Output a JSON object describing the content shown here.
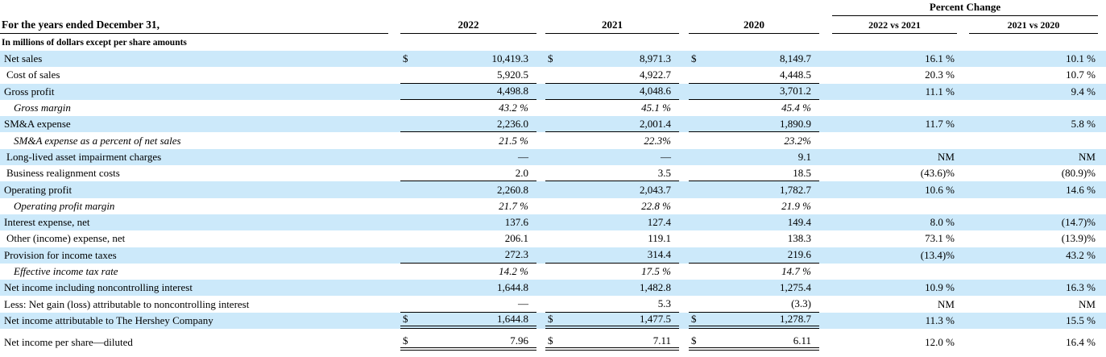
{
  "meta": {
    "currency_symbol": "$"
  },
  "colors": {
    "row_highlight": "#cce9fa",
    "text": "#000000"
  },
  "header": {
    "percent_change_label": "Percent Change",
    "row_label_header": "For the years ended December 31,",
    "unit_note": "In millions of dollars except per share amounts",
    "year_columns": [
      "2022",
      "2021",
      "2020"
    ],
    "percent_columns": [
      "2022 vs 2021",
      "2021 vs 2020"
    ]
  },
  "rows": [
    {
      "label": "Net sales",
      "shaded": true,
      "indent": 0,
      "italic": false,
      "dollar": true,
      "underline": "none",
      "y2022": "10,419.3",
      "y2021": "8,971.3",
      "y2020": "8,149.7",
      "pc1": "16.1 %",
      "pc2": "10.1 %"
    },
    {
      "label": "Cost of sales",
      "shaded": false,
      "indent": 1,
      "italic": false,
      "dollar": false,
      "underline": "single",
      "y2022": "5,920.5",
      "y2021": "4,922.7",
      "y2020": "4,448.5",
      "pc1": "20.3 %",
      "pc2": "10.7 %"
    },
    {
      "label": "Gross profit",
      "shaded": true,
      "indent": 0,
      "italic": false,
      "dollar": false,
      "underline": "single",
      "y2022": "4,498.8",
      "y2021": "4,048.6",
      "y2020": "3,701.2",
      "pc1": "11.1 %",
      "pc2": "9.4 %"
    },
    {
      "label": "Gross margin",
      "shaded": false,
      "indent": 2,
      "italic": true,
      "dollar": false,
      "underline": "none",
      "y2022": "43.2 %",
      "y2021": "45.1 %",
      "y2020": "45.4 %",
      "pc1": "",
      "pc2": ""
    },
    {
      "label": "SM&A expense",
      "shaded": true,
      "indent": 0,
      "italic": false,
      "dollar": false,
      "underline": "single",
      "y2022": "2,236.0",
      "y2021": "2,001.4",
      "y2020": "1,890.9",
      "pc1": "11.7 %",
      "pc2": "5.8 %"
    },
    {
      "label": "SM&A expense as a percent of net sales",
      "shaded": false,
      "indent": 2,
      "italic": true,
      "dollar": false,
      "underline": "none",
      "y2022": "21.5 %",
      "y2021": "22.3%",
      "y2020": "23.2%",
      "pc1": "",
      "pc2": ""
    },
    {
      "label": "Long-lived asset impairment charges",
      "shaded": true,
      "indent": 1,
      "italic": false,
      "dollar": false,
      "underline": "none",
      "y2022": "—",
      "y2021": "—",
      "y2020": "9.1",
      "pc1": "NM",
      "pc2": "NM"
    },
    {
      "label": "Business realignment costs",
      "shaded": false,
      "indent": 1,
      "italic": false,
      "dollar": false,
      "underline": "single",
      "y2022": "2.0",
      "y2021": "3.5",
      "y2020": "18.5",
      "pc1": "(43.6)%",
      "pc2": "(80.9)%"
    },
    {
      "label": "Operating profit",
      "shaded": true,
      "indent": 0,
      "italic": false,
      "dollar": false,
      "underline": "none",
      "y2022": "2,260.8",
      "y2021": "2,043.7",
      "y2020": "1,782.7",
      "pc1": "10.6 %",
      "pc2": "14.6 %"
    },
    {
      "label": "Operating profit margin",
      "shaded": false,
      "indent": 2,
      "italic": true,
      "dollar": false,
      "underline": "none",
      "y2022": "21.7 %",
      "y2021": "22.8 %",
      "y2020": "21.9 %",
      "pc1": "",
      "pc2": ""
    },
    {
      "label": "Interest expense, net",
      "shaded": true,
      "indent": 0,
      "italic": false,
      "dollar": false,
      "underline": "none",
      "y2022": "137.6",
      "y2021": "127.4",
      "y2020": "149.4",
      "pc1": "8.0 %",
      "pc2": "(14.7)%"
    },
    {
      "label": "Other (income) expense, net",
      "shaded": false,
      "indent": 1,
      "italic": false,
      "dollar": false,
      "underline": "none",
      "y2022": "206.1",
      "y2021": "119.1",
      "y2020": "138.3",
      "pc1": "73.1 %",
      "pc2": "(13.9)%"
    },
    {
      "label": "Provision for income taxes",
      "shaded": true,
      "indent": 0,
      "italic": false,
      "dollar": false,
      "underline": "single",
      "y2022": "272.3",
      "y2021": "314.4",
      "y2020": "219.6",
      "pc1": "(13.4)%",
      "pc2": "43.2 %"
    },
    {
      "label": "Effective income tax rate",
      "shaded": false,
      "indent": 2,
      "italic": true,
      "dollar": false,
      "underline": "none",
      "y2022": "14.2 %",
      "y2021": "17.5 %",
      "y2020": "14.7 %",
      "pc1": "",
      "pc2": ""
    },
    {
      "label": "Net income including noncontrolling interest",
      "shaded": true,
      "indent": 0,
      "italic": false,
      "dollar": false,
      "underline": "none",
      "y2022": "1,644.8",
      "y2021": "1,482.8",
      "y2020": "1,275.4",
      "pc1": "10.9 %",
      "pc2": "16.3 %"
    },
    {
      "label": "Less: Net gain (loss) attributable to noncontrolling interest",
      "shaded": false,
      "indent": 0,
      "italic": false,
      "dollar": false,
      "underline": "single",
      "y2022": "—",
      "y2021": "5.3",
      "y2020": "(3.3)",
      "pc1": "NM",
      "pc2": "NM"
    },
    {
      "label": "Net income attributable to The Hershey Company",
      "shaded": true,
      "indent": 0,
      "italic": false,
      "dollar": true,
      "underline": "double",
      "y2022": "1,644.8",
      "y2021": "1,477.5",
      "y2020": "1,278.7",
      "pc1": "11.3 %",
      "pc2": "15.5 %"
    },
    {
      "label": "Net income per share—diluted",
      "shaded": false,
      "indent": 0,
      "italic": false,
      "dollar": true,
      "underline": "double",
      "gap_above": true,
      "y2022": "7.96",
      "y2021": "7.11",
      "y2020": "6.11",
      "pc1": "12.0 %",
      "pc2": "16.4 %"
    }
  ]
}
